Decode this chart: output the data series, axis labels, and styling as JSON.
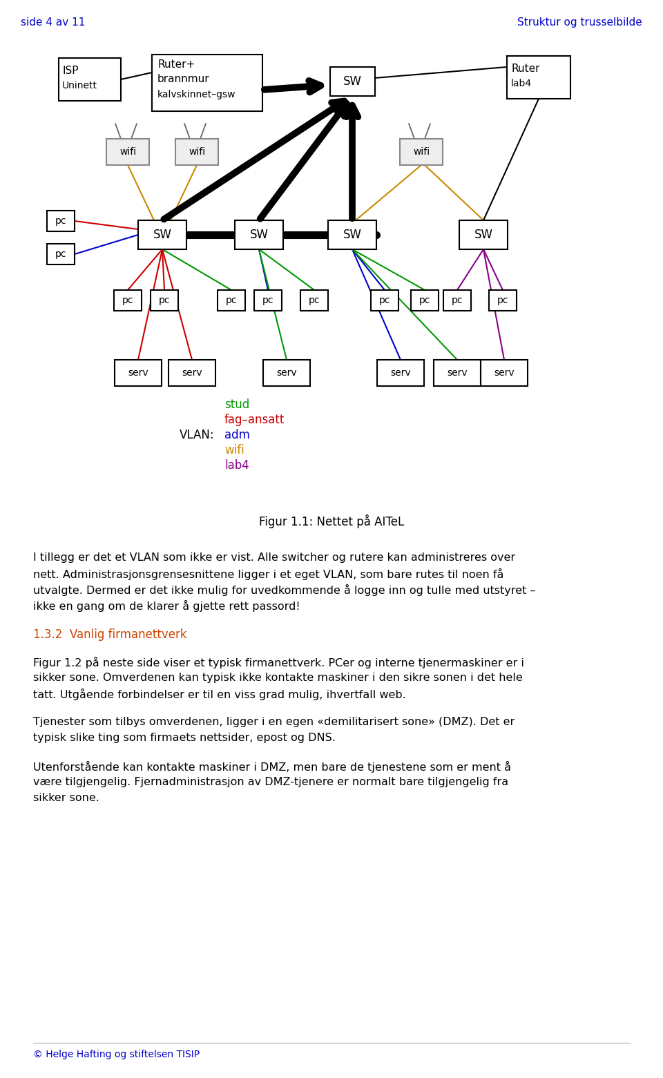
{
  "page_header_left": "side 4 av 11",
  "page_header_right": "Struktur og trusselbilde",
  "header_color": "#0000cc",
  "fig_caption": "Figur 1.1: Nettet på AITeL",
  "vlan_labels": [
    {
      "text": "stud",
      "color": "#009900"
    },
    {
      "text": "fag–ansatt",
      "color": "#cc0000"
    },
    {
      "text": "adm",
      "color": "#0000cc"
    },
    {
      "text": "wifi",
      "color": "#cc8800"
    },
    {
      "text": "lab4",
      "color": "#880088"
    }
  ],
  "vlan_prefix": "VLAN:",
  "section_header_color": "#cc4400",
  "body_paragraphs": [
    {
      "type": "normal",
      "lines": [
        "I tillegg er det et VLAN som ikke er vist. Alle switcher og rutere kan administreres over",
        "nett. Administrasjonsgrensesnittene ligger i et eget VLAN, som bare rutes til noen få",
        "utvalgte. Dermed er det ikke mulig for uvedkommende å logge inn og tulle med utstyret –",
        "ikke en gang om de klarer å gjette rett passord!"
      ]
    },
    {
      "type": "section",
      "lines": [
        "1.3.2  Vanlig firmanettverk"
      ]
    },
    {
      "type": "normal",
      "lines": [
        "Figur 1.2 på neste side viser et typisk firmanettverk. PCer og interne tjenermaskiner er i",
        "sikker sone. Omverdenen kan typisk ikke kontakte maskiner i den sikre sonen i det hele",
        "tatt. Utgående forbindelser er til en viss grad mulig, ihvertfall web."
      ]
    },
    {
      "type": "normal",
      "lines": [
        "Tjenester som tilbys omverdenen, ligger i en egen «demilitarisert sone» (DMZ). Det er",
        "typisk slike ting som firmaets nettsider, epost og DNS."
      ]
    },
    {
      "type": "normal",
      "lines": [
        "Utenforstående kan kontakte maskiner i DMZ, men bare de tjenestene som er ment å",
        "være tilgjengelig. Fjernadministrasjon av DMZ-tjenere er normalt bare tilgjengelig fra",
        "sikker sone."
      ]
    }
  ],
  "footer_text": "© Helge Hafting og stiftelsen TISIP",
  "footer_color": "#0000cc"
}
